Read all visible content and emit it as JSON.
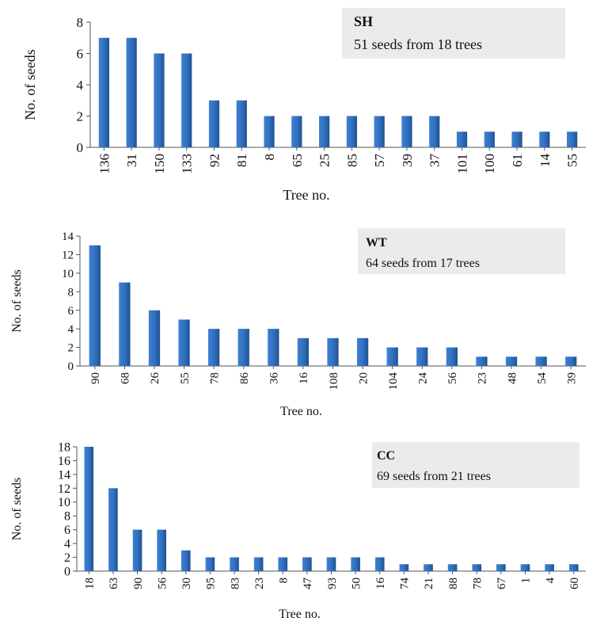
{
  "chart_data": [
    {
      "type": "bar",
      "panel_label": "SH",
      "summary": "51 seeds from 18 trees",
      "xlabel": "Tree no.",
      "ylabel": "No. of seeds",
      "ylim": [
        0,
        8
      ],
      "yticks": [
        "0",
        "2",
        "4",
        "6",
        "8"
      ],
      "categories": [
        "136",
        "31",
        "150",
        "133",
        "92",
        "81",
        "8",
        "65",
        "25",
        "85",
        "57",
        "39",
        "37",
        "101",
        "100",
        "61",
        "14",
        "55"
      ],
      "values": [
        7,
        7,
        6,
        6,
        3,
        3,
        2,
        2,
        2,
        2,
        2,
        2,
        2,
        1,
        1,
        1,
        1,
        1
      ],
      "grid": false,
      "bar_color": "#2f6fbf"
    },
    {
      "type": "bar",
      "panel_label": "WT",
      "summary": "64 seeds from 17 trees",
      "xlabel": "Tree no.",
      "ylabel": "No. of seeds",
      "ylim": [
        0,
        14
      ],
      "yticks": [
        "0",
        "2",
        "4",
        "6",
        "8",
        "10",
        "12",
        "14"
      ],
      "categories": [
        "90",
        "68",
        "26",
        "55",
        "78",
        "86",
        "36",
        "16",
        "108",
        "20",
        "104",
        "24",
        "56",
        "23",
        "48",
        "54",
        "39"
      ],
      "values": [
        13,
        9,
        6,
        5,
        4,
        4,
        4,
        3,
        3,
        3,
        2,
        2,
        2,
        1,
        1,
        1,
        1
      ],
      "grid": false,
      "bar_color": "#2f6fbf"
    },
    {
      "type": "bar",
      "panel_label": "CC",
      "summary": "69 seeds from 21 trees",
      "xlabel": "Tree no.",
      "ylabel": "No. of seeds",
      "ylim": [
        0,
        18
      ],
      "yticks": [
        "0",
        "2",
        "4",
        "6",
        "8",
        "10",
        "12",
        "14",
        "16",
        "18"
      ],
      "categories": [
        "18",
        "63",
        "90",
        "56",
        "30",
        "95",
        "83",
        "23",
        "8",
        "47",
        "93",
        "50",
        "16",
        "74",
        "21",
        "88",
        "78",
        "67",
        "1",
        "4",
        "60"
      ],
      "values": [
        18,
        12,
        6,
        6,
        3,
        2,
        2,
        2,
        2,
        2,
        2,
        2,
        2,
        1,
        1,
        1,
        1,
        1,
        1,
        1,
        1
      ],
      "grid": false,
      "bar_color": "#2f6fbf"
    }
  ]
}
